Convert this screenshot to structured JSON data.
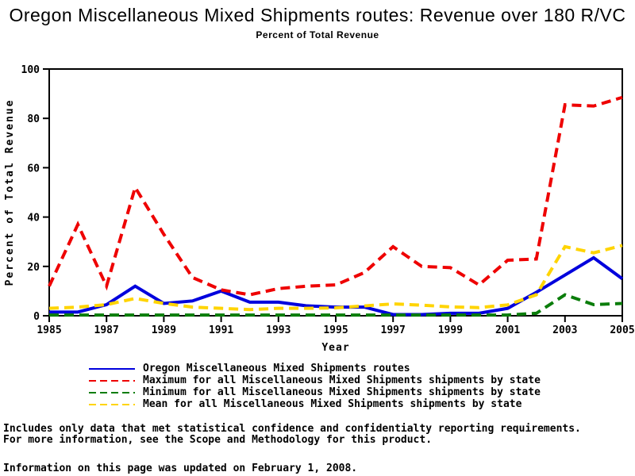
{
  "title": "Oregon Miscellaneous Mixed Shipments routes: Revenue over 180 R/VC",
  "subtitle": "Percent of Total Revenue",
  "chart_data": {
    "type": "line",
    "x": [
      1985,
      1986,
      1987,
      1988,
      1989,
      1990,
      1991,
      1992,
      1993,
      1994,
      1995,
      1996,
      1997,
      1998,
      1999,
      2000,
      2001,
      2002,
      2003,
      2004,
      2005
    ],
    "series": [
      {
        "name": "Oregon Miscellaneous Mixed Shipments routes",
        "color": "#0000dd",
        "style": "solid",
        "width": 4,
        "values": [
          1.5,
          1.5,
          4.5,
          12,
          5,
          6,
          10,
          5.5,
          5.5,
          4,
          3.5,
          3.5,
          0.5,
          0.5,
          1,
          1,
          3,
          9.5,
          16.5,
          23.5,
          15
        ]
      },
      {
        "name": "Maximum for all Miscellaneous Mixed Shipments shipments by state",
        "color": "#ee0000",
        "style": "dashed",
        "width": 4,
        "values": [
          12,
          37,
          12,
          52,
          33,
          15.5,
          10.5,
          8.5,
          11,
          12,
          12.5,
          17.5,
          28,
          20,
          19.5,
          12.5,
          22.5,
          23,
          85.5,
          85,
          88.5
        ]
      },
      {
        "name": "Minimum for all Miscellaneous Mixed Shipments shipments by state",
        "color": "#0b7d0b",
        "style": "dashed",
        "width": 4,
        "values": [
          0.3,
          0.3,
          0.3,
          0.3,
          0.3,
          0.3,
          0.3,
          0.3,
          0.3,
          0.3,
          0.3,
          0.3,
          0.3,
          0.3,
          0.3,
          0.3,
          0.3,
          1,
          8.5,
          4.5,
          5
        ]
      },
      {
        "name": "Mean for all Miscellaneous Mixed Shipments shipments by state",
        "color": "#ffd400",
        "style": "dashed",
        "width": 4,
        "values": [
          3,
          3.5,
          4.5,
          7,
          5,
          3.5,
          3,
          2.5,
          3,
          3,
          3.2,
          4,
          4.8,
          4.3,
          3.6,
          3.3,
          4.4,
          8.5,
          28,
          25.5,
          28.5
        ]
      }
    ],
    "xlabel": "Year",
    "ylabel": "Percent of Total Revenue",
    "xlim": [
      1985,
      2005
    ],
    "ylim": [
      0,
      100
    ],
    "x_ticks": [
      1985,
      1987,
      1989,
      1991,
      1993,
      1995,
      1997,
      1999,
      2001,
      2003,
      2005
    ],
    "y_ticks": [
      0,
      20,
      40,
      60,
      80,
      100
    ],
    "grid": false,
    "legend_position": "bottom"
  },
  "footnotes": {
    "line1": "Includes only data that met statistical confidence and confidentialty reporting requirements.",
    "line2": "For more information, see the Scope and Methodology for this product.",
    "updated": "Information on this page was updated on February 1, 2008."
  }
}
